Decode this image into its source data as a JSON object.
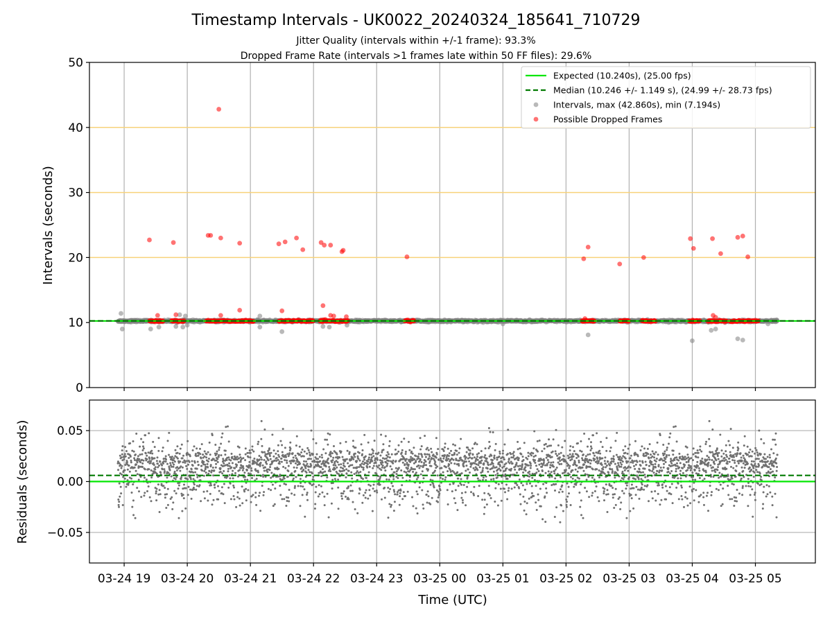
{
  "chart_data": [
    {
      "type": "scatter",
      "title": "Timestamp Intervals - UK0022_20240324_185641_710729",
      "subtitle_lines": [
        "Jitter Quality (intervals within +/-1 frame): 93.3%",
        "Dropped Frame Rate (intervals >1 frames late within 50 FF files): 29.6%"
      ],
      "xlabel": "",
      "ylabel": "Intervals (seconds)",
      "xlim_hours": [
        18.45,
        29.95
      ],
      "ylim": [
        0,
        50
      ],
      "yticks": [
        "0",
        "10",
        "20",
        "30",
        "40",
        "50"
      ],
      "xticks": [
        {
          "hour": 19,
          "label": "03-24 19"
        },
        {
          "hour": 20,
          "label": "03-24 20"
        },
        {
          "hour": 21,
          "label": "03-24 21"
        },
        {
          "hour": 22,
          "label": "03-24 22"
        },
        {
          "hour": 23,
          "label": "03-24 23"
        },
        {
          "hour": 24,
          "label": "03-25 00"
        },
        {
          "hour": 25,
          "label": "03-25 01"
        },
        {
          "hour": 26,
          "label": "03-25 02"
        },
        {
          "hour": 27,
          "label": "03-25 03"
        },
        {
          "hour": 28,
          "label": "03-25 04"
        },
        {
          "hour": 29,
          "label": "03-25 05"
        }
      ],
      "grid": "vertical",
      "threshold_lines": [
        20,
        30,
        40
      ],
      "threshold_color": "#f7d27a",
      "expected": {
        "label": "Expected (10.240s), (25.00 fps)",
        "value": 10.24,
        "color": "#00e600"
      },
      "median": {
        "label": "Median (10.246 +/- 1.149 s), (24.99 +/- 28.73 fps)",
        "value": 10.246,
        "color": "#007a00"
      },
      "intervals": {
        "label": "Intervals, max (42.860s), min (7.194s)",
        "color": "#808080",
        "x_range_hours": [
          18.9,
          29.35
        ],
        "base_value": 10.24,
        "outliers": [
          [
            18.95,
            11.4
          ],
          [
            18.97,
            9.0
          ],
          [
            19.42,
            9.0
          ],
          [
            19.55,
            9.3
          ],
          [
            19.82,
            9.4
          ],
          [
            19.88,
            11.2
          ],
          [
            19.93,
            9.3
          ],
          [
            19.97,
            11.0
          ],
          [
            20.0,
            9.6
          ],
          [
            21.15,
            11.0
          ],
          [
            21.15,
            9.3
          ],
          [
            21.5,
            8.6
          ],
          [
            22.15,
            9.4
          ],
          [
            22.25,
            9.3
          ],
          [
            22.53,
            9.6
          ],
          [
            25.0,
            9.8
          ],
          [
            26.35,
            8.1
          ],
          [
            28.0,
            7.2
          ],
          [
            28.3,
            8.8
          ],
          [
            28.37,
            9.0
          ],
          [
            28.72,
            7.5
          ],
          [
            28.8,
            7.3
          ],
          [
            29.2,
            9.8
          ]
        ]
      },
      "dropped": {
        "label": "Possible Dropped Frames",
        "color": "#ff0000",
        "outliers": [
          [
            19.4,
            22.7
          ],
          [
            19.53,
            11.1
          ],
          [
            19.78,
            22.3
          ],
          [
            19.82,
            11.2
          ],
          [
            20.33,
            23.4
          ],
          [
            20.37,
            23.4
          ],
          [
            20.5,
            42.8
          ],
          [
            20.53,
            23.0
          ],
          [
            20.53,
            11.1
          ],
          [
            20.83,
            22.2
          ],
          [
            20.83,
            11.9
          ],
          [
            21.45,
            22.1
          ],
          [
            21.5,
            11.8
          ],
          [
            21.55,
            22.4
          ],
          [
            21.73,
            23.0
          ],
          [
            21.83,
            21.2
          ],
          [
            22.12,
            22.3
          ],
          [
            22.15,
            12.6
          ],
          [
            22.17,
            21.9
          ],
          [
            22.27,
            21.9
          ],
          [
            22.27,
            11.1
          ],
          [
            22.32,
            11.0
          ],
          [
            22.45,
            20.9
          ],
          [
            22.47,
            21.1
          ],
          [
            22.52,
            10.9
          ],
          [
            23.48,
            20.1
          ],
          [
            26.28,
            19.8
          ],
          [
            26.3,
            10.6
          ],
          [
            26.35,
            21.6
          ],
          [
            26.85,
            19.0
          ],
          [
            27.23,
            20.0
          ],
          [
            27.97,
            22.9
          ],
          [
            28.02,
            21.4
          ],
          [
            28.32,
            22.9
          ],
          [
            28.45,
            20.6
          ],
          [
            28.72,
            23.1
          ],
          [
            28.8,
            23.3
          ],
          [
            28.33,
            11.1
          ],
          [
            28.37,
            10.8
          ],
          [
            28.88,
            20.1
          ]
        ],
        "clusters_hours": [
          [
            19.4,
            19.62
          ],
          [
            19.75,
            19.95
          ],
          [
            20.3,
            20.78
          ],
          [
            20.8,
            21.05
          ],
          [
            21.45,
            21.85
          ],
          [
            21.85,
            22.0
          ],
          [
            22.1,
            22.55
          ],
          [
            23.45,
            23.6
          ],
          [
            26.25,
            26.45
          ],
          [
            26.85,
            27.0
          ],
          [
            27.2,
            27.42
          ],
          [
            27.95,
            28.12
          ],
          [
            28.25,
            28.55
          ],
          [
            28.6,
            28.85
          ],
          [
            28.85,
            29.05
          ]
        ]
      },
      "legend_loc": "upper right"
    },
    {
      "type": "scatter",
      "title": "",
      "xlabel": "Time (UTC)",
      "ylabel": "Residuals (seconds)",
      "ylim": [
        -0.08,
        0.08
      ],
      "yticks": [
        "0.05",
        "0.00",
        "−0.05"
      ],
      "ytick_values": [
        0.05,
        0.0,
        -0.05
      ],
      "grid": "both",
      "zero_line": {
        "value": 0.0,
        "color": "#00e600"
      },
      "median_line": {
        "value": 0.006,
        "color": "#007a00"
      },
      "points": {
        "color": "#707070",
        "x_range_hours": [
          18.9,
          29.35
        ],
        "center": 0.008,
        "spread": 0.017
      }
    }
  ]
}
